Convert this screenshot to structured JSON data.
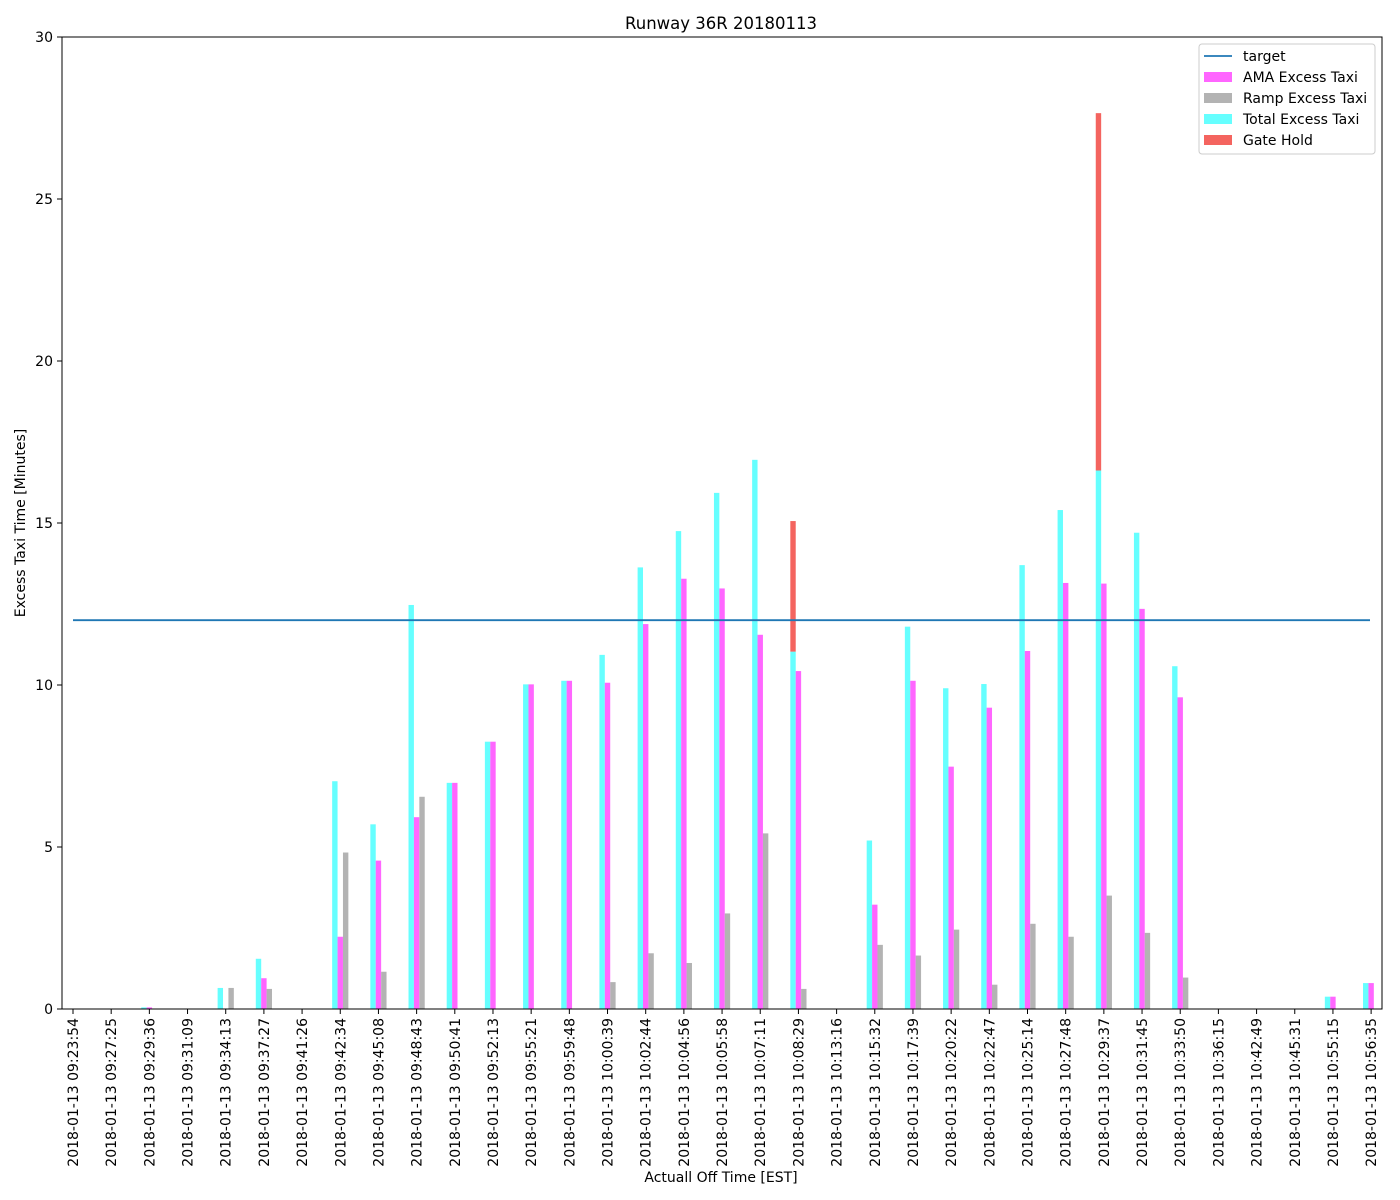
{
  "chart_data": {
    "type": "bar",
    "title": "Runway 36R 20180113",
    "xlabel": "Actuall Off Time [EST]",
    "ylabel": "Excess Taxi Time [Minutes]",
    "ylim": [
      0,
      30
    ],
    "yticks": [
      0,
      5,
      10,
      15,
      20,
      25,
      30
    ],
    "grid": false,
    "legend_position": "top-right",
    "target": {
      "name": "target",
      "value": 12,
      "color": "#1f77b4"
    },
    "categories": [
      "2018-01-13 09:23:54",
      "2018-01-13 09:27:25",
      "2018-01-13 09:29:36",
      "2018-01-13 09:31:09",
      "2018-01-13 09:34:13",
      "2018-01-13 09:37:27",
      "2018-01-13 09:41:26",
      "2018-01-13 09:42:34",
      "2018-01-13 09:45:08",
      "2018-01-13 09:48:43",
      "2018-01-13 09:50:41",
      "2018-01-13 09:52:13",
      "2018-01-13 09:55:21",
      "2018-01-13 09:59:48",
      "2018-01-13 10:00:39",
      "2018-01-13 10:02:44",
      "2018-01-13 10:04:56",
      "2018-01-13 10:05:58",
      "2018-01-13 10:07:11",
      "2018-01-13 10:08:29",
      "2018-01-13 10:13:16",
      "2018-01-13 10:15:32",
      "2018-01-13 10:17:39",
      "2018-01-13 10:20:22",
      "2018-01-13 10:22:47",
      "2018-01-13 10:25:14",
      "2018-01-13 10:27:48",
      "2018-01-13 10:29:37",
      "2018-01-13 10:31:45",
      "2018-01-13 10:33:50",
      "2018-01-13 10:36:15",
      "2018-01-13 10:42:49",
      "2018-01-13 10:45:31",
      "2018-01-13 10:55:15",
      "2018-01-13 10:56:35"
    ],
    "series": [
      {
        "name": "Total Excess Taxi",
        "color": "#66ffff",
        "offset": -1,
        "values": [
          0,
          0,
          0.05,
          0,
          0.65,
          1.55,
          0,
          7.03,
          5.7,
          12.47,
          6.98,
          8.25,
          10.02,
          10.13,
          10.93,
          13.63,
          14.75,
          15.93,
          16.95,
          11.03,
          0,
          5.2,
          11.8,
          9.9,
          10.03,
          13.7,
          15.4,
          16.62,
          14.7,
          10.58,
          0,
          0,
          0,
          0.38,
          0.8
        ]
      },
      {
        "name": "AMA Excess Taxi",
        "color": "#ff66ff",
        "offset": 0,
        "values": [
          0,
          0,
          0.05,
          0,
          0,
          0.95,
          0,
          2.23,
          4.58,
          5.92,
          6.98,
          8.25,
          10.02,
          10.13,
          10.07,
          11.88,
          13.28,
          12.98,
          11.55,
          10.43,
          0,
          3.22,
          10.13,
          7.48,
          9.3,
          11.05,
          13.15,
          13.13,
          12.35,
          9.62,
          0,
          0,
          0,
          0.38,
          0.8
        ]
      },
      {
        "name": "Ramp Excess Taxi",
        "color": "#b3b3b3",
        "offset": 1,
        "values": [
          0,
          0,
          0,
          0,
          0.65,
          0.62,
          0,
          4.83,
          1.15,
          6.55,
          0,
          0,
          0,
          0,
          0.83,
          1.72,
          1.42,
          2.95,
          5.42,
          0.62,
          0,
          1.98,
          1.65,
          2.45,
          0.75,
          2.63,
          2.23,
          3.5,
          2.35,
          0.97,
          0,
          0,
          0,
          0,
          0
        ]
      },
      {
        "name": "Gate Hold",
        "color": "#f4645f",
        "offset": -1,
        "stacked_on": "Total Excess Taxi",
        "values": [
          0,
          0,
          0,
          0,
          0,
          0,
          0,
          0,
          0,
          0,
          0,
          0,
          0,
          0,
          0,
          0,
          0,
          0,
          0,
          4.03,
          0,
          0,
          0,
          0,
          0,
          0,
          0,
          11.03,
          0,
          0,
          0,
          0,
          0,
          0,
          0
        ]
      }
    ]
  },
  "legend": {
    "items": [
      {
        "label": "target",
        "kind": "line",
        "color": "#1f77b4"
      },
      {
        "label": "AMA Excess Taxi",
        "kind": "patch",
        "color": "#ff66ff"
      },
      {
        "label": "Ramp Excess Taxi",
        "kind": "patch",
        "color": "#b3b3b3"
      },
      {
        "label": "Total Excess Taxi",
        "kind": "patch",
        "color": "#66ffff"
      },
      {
        "label": "Gate Hold",
        "kind": "patch",
        "color": "#f4645f"
      }
    ]
  }
}
